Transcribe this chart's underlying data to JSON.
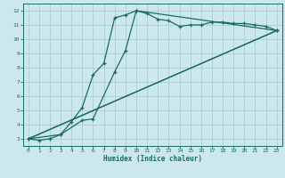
{
  "xlabel": "Humidex (Indice chaleur)",
  "bg_color": "#cce8ec",
  "grid_color": "#aacdd4",
  "line_color": "#1a6b62",
  "xlim": [
    -0.5,
    23.5
  ],
  "ylim": [
    2.5,
    12.5
  ],
  "xticks": [
    0,
    1,
    2,
    3,
    4,
    5,
    6,
    7,
    8,
    9,
    10,
    11,
    12,
    13,
    14,
    15,
    16,
    17,
    18,
    19,
    20,
    21,
    22,
    23
  ],
  "yticks": [
    3,
    4,
    5,
    6,
    7,
    8,
    9,
    10,
    11,
    12
  ],
  "line1_x": [
    0,
    1,
    2,
    3,
    4,
    5,
    6,
    7,
    8,
    9,
    10,
    11,
    12,
    13,
    14,
    15,
    16,
    17,
    18,
    19,
    20,
    21,
    22,
    23
  ],
  "line1_y": [
    3.0,
    2.9,
    3.0,
    3.3,
    4.2,
    5.2,
    7.5,
    8.3,
    11.5,
    11.7,
    12.0,
    11.8,
    11.4,
    11.3,
    10.9,
    11.0,
    11.0,
    11.2,
    11.2,
    11.1,
    11.1,
    11.0,
    10.9,
    10.6
  ],
  "line2_x": [
    0,
    3,
    5,
    6,
    8,
    9,
    10,
    23
  ],
  "line2_y": [
    3.0,
    3.3,
    4.3,
    4.4,
    7.7,
    9.2,
    12.0,
    10.6
  ],
  "line3_x": [
    0,
    23
  ],
  "line3_y": [
    3.0,
    10.6
  ],
  "line4_x": [
    0,
    23
  ],
  "line4_y": [
    3.0,
    10.6
  ]
}
